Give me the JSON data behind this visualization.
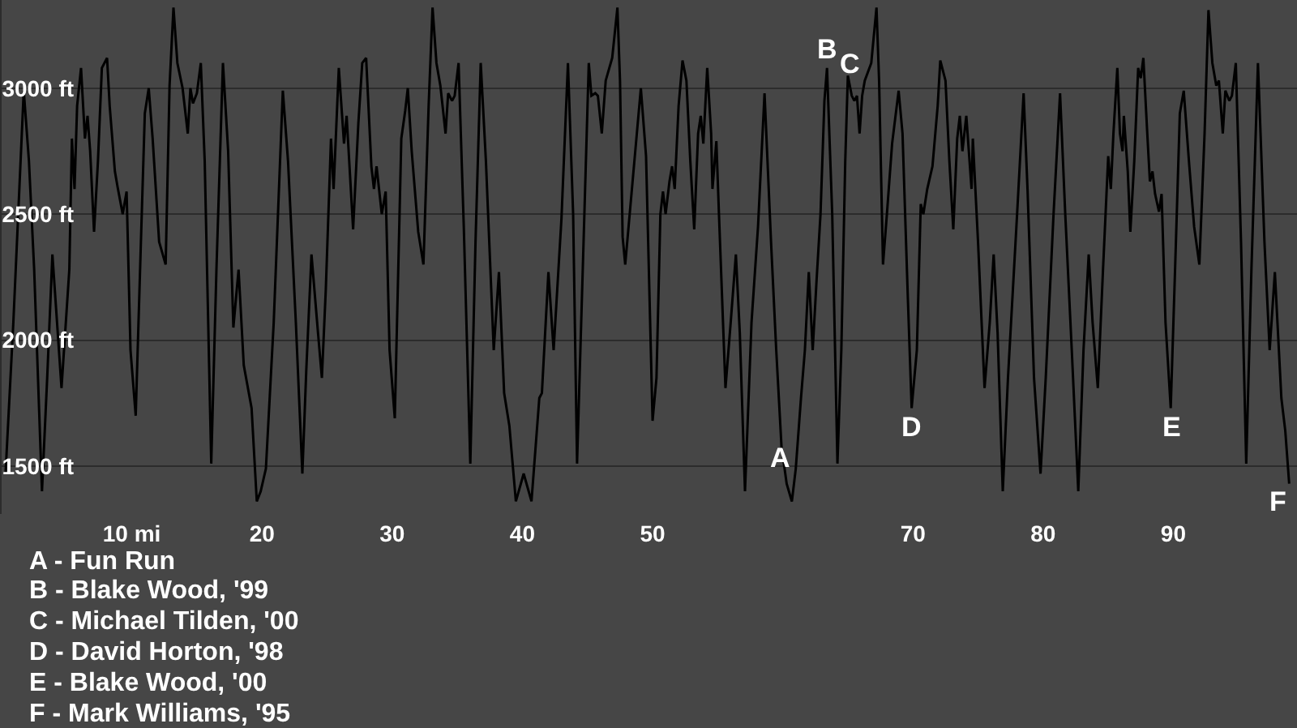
{
  "chart_data": {
    "type": "line",
    "series": [
      {
        "color": "#000000",
        "x": [
          0.3,
          0.9,
          1.7,
          2.1,
          2.5,
          3.1,
          3.5,
          3.9,
          4.6,
          5.2,
          5.4,
          5.6,
          5.8,
          6.1,
          6.4,
          6.6,
          6.8,
          7.1,
          7.4,
          7.7,
          8.1,
          8.3,
          8.7,
          8.9,
          9.3,
          9.6,
          9.9,
          10.3,
          10.7,
          11.0,
          11.3,
          11.6,
          12.1,
          12.6,
          12.9,
          13.2,
          13.5,
          13.9,
          14.3,
          14.5,
          14.7,
          15.0,
          15.3,
          15.6,
          16.1,
          16.5,
          17.0,
          17.4,
          17.8,
          18.2,
          18.6,
          19.2,
          19.6,
          19.9,
          20.3,
          20.9,
          21.6,
          22.0,
          22.6,
          23.1,
          23.4,
          23.8,
          24.3,
          24.6,
          24.9,
          25.3,
          25.5,
          25.9,
          26.3,
          26.5,
          27.0,
          27.4,
          27.7,
          28.0,
          28.4,
          28.6,
          28.8,
          29.2,
          29.5,
          29.8,
          30.2,
          30.7,
          31.0,
          31.2,
          31.5,
          32.0,
          32.4,
          32.8,
          33.1,
          33.4,
          33.7,
          34.1,
          34.3,
          34.6,
          34.8,
          35.1,
          35.5,
          36.0,
          36.4,
          36.8,
          37.2,
          37.8,
          38.2,
          38.6,
          39.0,
          39.5,
          40.1,
          40.7,
          41.3,
          41.5,
          42.0,
          42.4,
          43.0,
          43.5,
          43.9,
          44.2,
          44.7,
          45.1,
          45.3,
          45.6,
          45.8,
          46.1,
          46.4,
          46.9,
          47.3,
          47.5,
          47.7,
          47.9,
          48.5,
          49.1,
          49.5,
          50.0,
          50.3,
          50.6,
          50.8,
          51.0,
          51.3,
          51.5,
          51.7,
          52.0,
          52.3,
          52.6,
          52.9,
          53.2,
          53.5,
          53.7,
          53.9,
          54.2,
          54.5,
          54.6,
          54.9,
          55.1,
          55.6,
          56.0,
          56.4,
          56.7,
          57.1,
          57.6,
          58.1,
          58.6,
          59.1,
          59.5,
          59.9,
          60.3,
          60.7,
          61.0,
          61.4,
          61.7,
          62.0,
          62.3,
          62.6,
          62.9,
          63.2,
          63.4,
          63.8,
          64.2,
          64.5,
          64.8,
          65.0,
          65.3,
          65.5,
          65.7,
          65.9,
          66.1,
          66.3,
          66.8,
          67.2,
          67.4,
          67.7,
          68.0,
          68.4,
          68.9,
          69.2,
          69.6,
          69.9,
          70.3,
          70.6,
          70.8,
          71.1,
          71.5,
          71.9,
          72.1,
          72.5,
          72.8,
          73.1,
          73.4,
          73.6,
          73.8,
          74.1,
          74.5,
          74.6,
          75.0,
          75.5,
          75.9,
          76.2,
          76.5,
          76.9,
          77.3,
          78.0,
          78.5,
          78.8,
          79.3,
          79.8,
          80.2,
          80.8,
          81.3,
          81.7,
          82.2,
          82.7,
          83.1,
          83.5,
          83.8,
          84.2,
          84.6,
          85.0,
          85.2,
          85.4,
          85.7,
          85.9,
          86.1,
          86.2,
          86.5,
          86.7,
          87.0,
          87.3,
          87.5,
          87.7,
          88.0,
          88.2,
          88.4,
          88.6,
          88.9,
          89.1,
          89.4,
          89.8,
          90.2,
          90.5,
          90.8,
          91.2,
          91.6,
          92.0,
          92.4,
          92.7,
          93.0,
          93.3,
          93.5,
          93.8,
          94.0,
          94.3,
          94.5,
          94.8,
          95.2,
          95.6,
          96.0,
          96.5,
          96.7,
          97.0,
          97.4,
          97.8,
          98.0,
          98.3,
          98.6,
          98.9
        ],
        "values": [
          1470,
          2070,
          2990,
          2710,
          2280,
          1400,
          1850,
          2340,
          1810,
          2280,
          2800,
          2600,
          2930,
          3080,
          2800,
          2890,
          2750,
          2430,
          2710,
          3080,
          3120,
          2930,
          2670,
          2610,
          2500,
          2590,
          1960,
          1700,
          2390,
          2900,
          3000,
          2800,
          2390,
          2300,
          3010,
          3320,
          3100,
          3000,
          2820,
          3000,
          2940,
          2980,
          3100,
          2710,
          1510,
          2280,
          3100,
          2750,
          2050,
          2280,
          1900,
          1730,
          1360,
          1400,
          1490,
          2070,
          2990,
          2710,
          2070,
          1470,
          1880,
          2340,
          2030,
          1850,
          2200,
          2800,
          2600,
          3080,
          2780,
          2890,
          2440,
          2860,
          3100,
          3120,
          2690,
          2600,
          2690,
          2500,
          2590,
          1960,
          1690,
          2800,
          2910,
          3000,
          2750,
          2430,
          2300,
          2930,
          3320,
          3100,
          3010,
          2820,
          2980,
          2950,
          2970,
          3100,
          2450,
          1510,
          2390,
          3100,
          2710,
          1960,
          2270,
          1790,
          1660,
          1360,
          1470,
          1360,
          1770,
          1790,
          2270,
          1960,
          2480,
          3100,
          2500,
          1510,
          2390,
          3100,
          2970,
          2980,
          2970,
          2820,
          3030,
          3120,
          3320,
          3030,
          2410,
          2300,
          2650,
          3000,
          2730,
          1680,
          1850,
          2500,
          2590,
          2500,
          2630,
          2690,
          2600,
          2930,
          3110,
          3030,
          2710,
          2440,
          2820,
          2890,
          2780,
          3080,
          2820,
          2600,
          2790,
          2500,
          1810,
          2070,
          2340,
          2030,
          1400,
          2070,
          2450,
          2980,
          2390,
          1960,
          1580,
          1430,
          1360,
          1490,
          1770,
          1960,
          2270,
          1960,
          2240,
          2500,
          2950,
          3080,
          2500,
          1510,
          1960,
          2710,
          3050,
          2970,
          2950,
          2970,
          2820,
          2970,
          3030,
          3100,
          3320,
          3030,
          2300,
          2500,
          2780,
          2990,
          2820,
          2180,
          1730,
          1960,
          2540,
          2500,
          2600,
          2690,
          2930,
          3110,
          3030,
          2710,
          2440,
          2800,
          2890,
          2750,
          2890,
          2600,
          2800,
          2390,
          1810,
          2070,
          2340,
          2030,
          1400,
          1850,
          2500,
          2980,
          2600,
          1850,
          1470,
          1850,
          2500,
          2980,
          2500,
          1960,
          1400,
          1960,
          2340,
          2070,
          1810,
          2280,
          2730,
          2600,
          2820,
          3080,
          2820,
          2750,
          2890,
          2670,
          2430,
          2710,
          3080,
          3040,
          3120,
          2820,
          2630,
          2670,
          2580,
          2510,
          2580,
          2070,
          1730,
          2390,
          2900,
          2990,
          2710,
          2450,
          2300,
          2820,
          3310,
          3100,
          3010,
          3030,
          2820,
          2990,
          2950,
          2970,
          3100,
          2390,
          1510,
          2280,
          3100,
          2820,
          2390,
          1960,
          2270,
          2070,
          1770,
          1640,
          1430
        ]
      }
    ],
    "xlim": [
      0,
      99.5
    ],
    "ylim": [
      1310,
      3350
    ],
    "xticks": [
      {
        "value": 10,
        "label": "10 mi"
      },
      20,
      30,
      40,
      50,
      70,
      80,
      90
    ],
    "yticks": [
      {
        "value": 1500,
        "label": "1500 ft"
      },
      {
        "value": 2000,
        "label": "2000 ft"
      },
      {
        "value": 2500,
        "label": "2500 ft"
      },
      {
        "value": 3000,
        "label": "3000 ft"
      }
    ],
    "grid": "y",
    "annotations": [
      {
        "text": "A",
        "x": 59.8,
        "y": 1530
      },
      {
        "text": "B",
        "x": 63.4,
        "y": 3080
      },
      {
        "text": "C",
        "x": 65.1,
        "y": 3020
      },
      {
        "text": "D",
        "x": 69.9,
        "y": 1730
      },
      {
        "text": "E",
        "x": 89.8,
        "y": 1730
      },
      {
        "text": "F",
        "x": 98.9,
        "y": 1430
      },
      "A - Fun Run",
      "B - Blake Wood, '99",
      "C - Michael Tilden, '00",
      "D - David Horton, '98",
      "E - Blake Wood, '00",
      "F - Mark Williams, '95"
    ]
  }
}
